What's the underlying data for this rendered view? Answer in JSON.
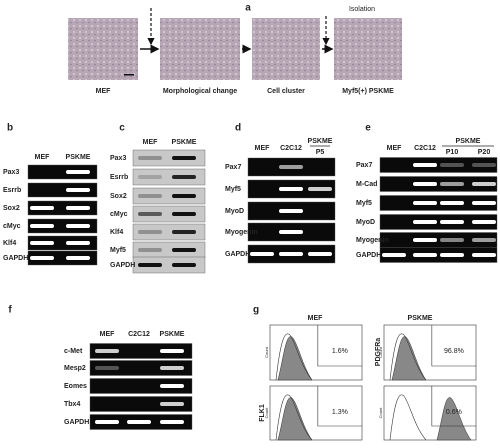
{
  "panel_a": {
    "label": "a",
    "isolation": "Isolation",
    "images": [
      "MEF",
      "Morphological change",
      "Cell cluster",
      "Myf5(+) PSKME"
    ]
  },
  "panel_b": {
    "label": "b",
    "columns": [
      "MEF",
      "PSKME"
    ],
    "rows": [
      "Pax3",
      "Esrrb",
      "Sox2",
      "cMyc",
      "Klf4",
      "GAPDH"
    ]
  },
  "panel_c": {
    "label": "c",
    "columns": [
      "MEF",
      "PSKME"
    ],
    "rows": [
      "Pax3",
      "Esrrb",
      "Sox2",
      "cMyc",
      "Klf4",
      "Myf5",
      "GAPDH"
    ]
  },
  "panel_d": {
    "label": "d",
    "columns": [
      "MEF",
      "C2C12"
    ],
    "group": "PSKME",
    "group_columns": [
      "P5"
    ],
    "rows": [
      "Pax7",
      "Myf5",
      "MyoD",
      "Myogenin",
      "GAPDH"
    ]
  },
  "panel_e": {
    "label": "e",
    "columns": [
      "MEF",
      "C2C12"
    ],
    "group": "PSKME",
    "group_columns": [
      "P10",
      "P20"
    ],
    "rows": [
      "Pax7",
      "M-Cad",
      "Myf5",
      "MyoD",
      "Myogenin",
      "GAPDH"
    ]
  },
  "panel_f": {
    "label": "f",
    "columns": [
      "MEF",
      "C2C12",
      "PSKME"
    ],
    "rows": [
      "c-Met",
      "Mesp2",
      "Eomes",
      "Tbx4",
      "GAPDH"
    ]
  },
  "panel_g": {
    "label": "g",
    "columns": [
      "MEF",
      "PSKME"
    ],
    "markers": [
      "PDGFRa",
      "FLK1"
    ],
    "axis_label": "Count",
    "percentages": [
      [
        "1.6%",
        "96.8%"
      ],
      [
        "1.3%",
        "0.6%"
      ]
    ]
  }
}
